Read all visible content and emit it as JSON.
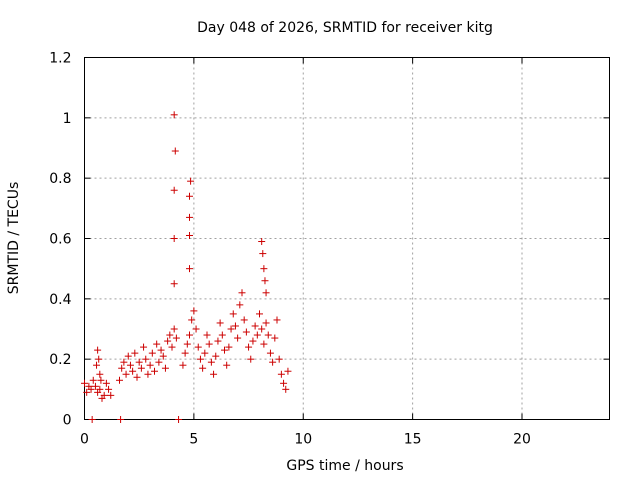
{
  "chart_data": {
    "type": "scatter",
    "title": "Day 048 of 2026, SRMTID for receiver kitg",
    "xlabel": "GPS time / hours",
    "ylabel": "SRMTID / TECUs",
    "xlim": [
      0,
      24
    ],
    "ylim": [
      0,
      1.2
    ],
    "xticks": [
      0,
      5,
      10,
      15,
      20
    ],
    "yticks": [
      0,
      0.2,
      0.4,
      0.6,
      0.8,
      1,
      1.2
    ],
    "xtick_labels": [
      "0",
      "5",
      "10",
      "15",
      "20"
    ],
    "ytick_labels": [
      "0",
      "0.2",
      "0.4",
      "0.6",
      "0.8",
      "1",
      "1.2"
    ],
    "grid": true,
    "legend": "none",
    "marker": "plus",
    "color": "#cc0000",
    "series": [
      {
        "name": "SRMTID",
        "x": [
          0.0,
          0.1,
          0.2,
          0.3,
          0.4,
          0.5,
          0.6,
          0.7,
          0.8,
          0.9,
          1.0,
          1.1,
          1.2,
          0.55,
          0.6,
          0.65,
          0.7,
          0.75,
          1.6,
          1.7,
          1.8,
          1.9,
          2.0,
          2.1,
          2.2,
          2.3,
          2.4,
          2.5,
          2.6,
          2.7,
          2.8,
          2.9,
          3.0,
          3.1,
          3.2,
          3.3,
          3.4,
          3.5,
          3.6,
          3.7,
          3.8,
          3.9,
          4.0,
          4.1,
          4.2,
          4.1,
          4.15,
          4.1,
          4.1,
          4.1,
          4.5,
          4.6,
          4.7,
          4.8,
          4.85,
          4.8,
          4.8,
          4.8,
          4.8,
          4.9,
          5.0,
          5.1,
          5.2,
          5.3,
          5.4,
          5.5,
          5.6,
          5.7,
          5.8,
          5.9,
          6.0,
          6.1,
          6.2,
          6.3,
          6.4,
          6.5,
          6.6,
          6.7,
          6.8,
          6.9,
          7.0,
          7.1,
          7.2,
          7.3,
          7.4,
          7.5,
          7.6,
          7.7,
          7.8,
          7.9,
          8.0,
          8.1,
          8.2,
          8.3,
          8.4,
          8.5,
          8.6,
          8.7,
          8.8,
          8.9,
          9.0,
          9.1,
          9.2,
          9.3,
          8.1,
          8.15,
          8.2,
          8.25,
          8.3,
          0.35,
          1.65,
          4.3
        ],
        "y": [
          0.12,
          0.09,
          0.11,
          0.1,
          0.13,
          0.11,
          0.09,
          0.1,
          0.07,
          0.08,
          0.12,
          0.1,
          0.08,
          0.18,
          0.23,
          0.2,
          0.15,
          0.13,
          0.13,
          0.17,
          0.19,
          0.15,
          0.21,
          0.18,
          0.16,
          0.22,
          0.14,
          0.19,
          0.17,
          0.24,
          0.2,
          0.15,
          0.18,
          0.22,
          0.16,
          0.25,
          0.19,
          0.23,
          0.21,
          0.17,
          0.26,
          0.28,
          0.24,
          0.3,
          0.27,
          1.01,
          0.89,
          0.76,
          0.6,
          0.45,
          0.18,
          0.22,
          0.25,
          0.28,
          0.79,
          0.74,
          0.67,
          0.61,
          0.5,
          0.33,
          0.36,
          0.3,
          0.24,
          0.2,
          0.17,
          0.22,
          0.28,
          0.25,
          0.19,
          0.15,
          0.21,
          0.26,
          0.32,
          0.28,
          0.23,
          0.18,
          0.24,
          0.3,
          0.35,
          0.31,
          0.27,
          0.38,
          0.42,
          0.33,
          0.29,
          0.24,
          0.2,
          0.26,
          0.31,
          0.28,
          0.35,
          0.3,
          0.25,
          0.32,
          0.28,
          0.22,
          0.19,
          0.27,
          0.33,
          0.2,
          0.15,
          0.12,
          0.1,
          0.16,
          0.59,
          0.55,
          0.5,
          0.46,
          0.42,
          0.0,
          0.0,
          0.0
        ]
      }
    ]
  }
}
